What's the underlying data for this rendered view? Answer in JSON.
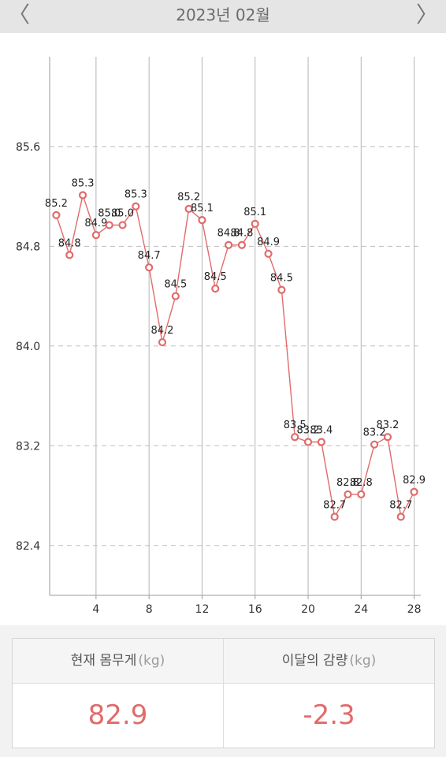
{
  "header": {
    "title": "2023년 02월",
    "prev_icon": "chevron-left-icon",
    "next_icon": "chevron-right-icon",
    "prev_glyph": "〈",
    "next_glyph": "〉"
  },
  "chart_data": {
    "type": "line",
    "x": [
      1,
      2,
      3,
      4,
      5,
      6,
      7,
      8,
      9,
      10,
      11,
      12,
      13,
      14,
      15,
      16,
      17,
      18,
      19,
      20,
      21,
      22,
      23,
      24,
      25,
      26,
      27,
      28
    ],
    "values": [
      85.2,
      84.8,
      85.3,
      84.9,
      85.0,
      85.0,
      85.3,
      84.7,
      84.2,
      84.5,
      85.2,
      85.1,
      84.5,
      84.8,
      84.8,
      85.1,
      84.9,
      84.5,
      83.5,
      83.2,
      83.4,
      82.7,
      82.8,
      82.8,
      83.2,
      83.2,
      82.7,
      82.9
    ],
    "data_labels": [
      "85.2",
      "84.8",
      "85.3",
      "84.9",
      "85.0",
      "85.0",
      "85.3",
      "84.7",
      "84.2",
      "84.5",
      "85.2",
      "85.1",
      "84.5",
      "84.8",
      "84.8",
      "85.1",
      "84.9",
      "84.5",
      "83.5",
      "83.2",
      "83.4",
      "82.7",
      "82.8",
      "82.8",
      "83.2",
      "83.2",
      "82.7",
      "82.9"
    ],
    "plot_values": [
      85.05,
      84.73,
      85.21,
      84.89,
      84.97,
      84.97,
      85.12,
      84.63,
      84.03,
      84.4,
      85.1,
      85.01,
      84.46,
      84.81,
      84.81,
      84.98,
      84.74,
      84.45,
      83.27,
      83.23,
      83.23,
      82.63,
      82.81,
      82.81,
      83.21,
      83.27,
      82.63,
      82.83
    ],
    "x_ticks": [
      4,
      8,
      12,
      16,
      20,
      24,
      28
    ],
    "x_range": [
      0.5,
      28.5
    ],
    "y_ticks": [
      "85.6",
      "84.8",
      "84.0",
      "83.2",
      "82.4"
    ],
    "y_range": [
      82.0,
      86.32
    ],
    "grid": true,
    "line_color": "#e16b6b",
    "marker_fill": "#ffffff"
  },
  "summary": {
    "current_label": "현재 몸무게",
    "current_unit": "(kg)",
    "current_value": "82.9",
    "change_label": "이달의 감량",
    "change_unit": "(kg)",
    "change_value": "-2.3",
    "value_color": "#e16b6b"
  }
}
